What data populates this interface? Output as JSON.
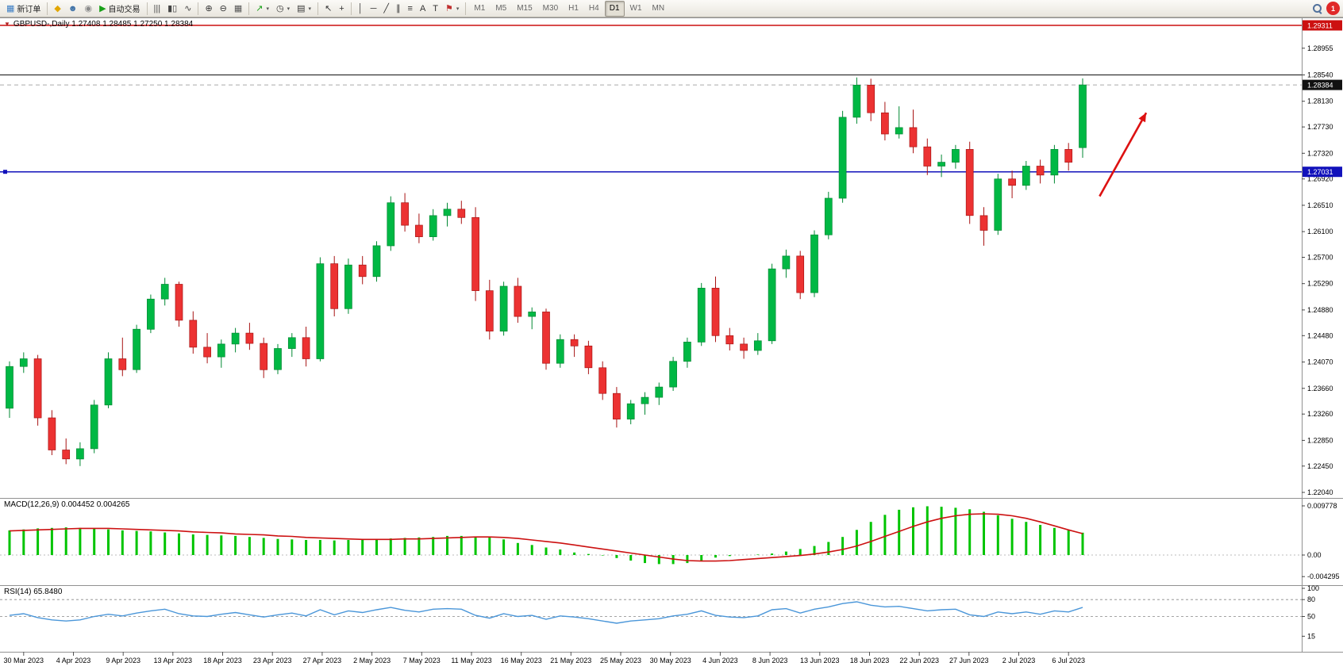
{
  "toolbar": {
    "active_timeframe": "D1",
    "items": [
      {
        "type": "button",
        "name": "new-order-button",
        "icon": "new-order-icon",
        "glyph": "▦",
        "color": "#3b7dc4",
        "label": "新订单"
      },
      {
        "type": "sep"
      },
      {
        "type": "button",
        "name": "metaeditor-button",
        "icon": "metaeditor-icon",
        "glyph": "◆",
        "color": "#e2a600"
      },
      {
        "type": "button",
        "name": "community-button",
        "icon": "community-icon",
        "glyph": "☻",
        "color": "#3a6ea5"
      },
      {
        "type": "button",
        "name": "market-button",
        "icon": "market-icon",
        "glyph": "◉",
        "color": "#8a8a8a"
      },
      {
        "type": "button",
        "name": "autotrading-button",
        "icon": "autotrading-play-icon",
        "glyph": "▶",
        "color": "#18a018",
        "label": "自动交易"
      },
      {
        "type": "sep"
      },
      {
        "type": "button",
        "name": "bar-chart-button",
        "icon": "bar-chart-icon",
        "glyph": "|||",
        "color": "#444444"
      },
      {
        "type": "button",
        "name": "candlestick-chart-button",
        "icon": "candlestick-chart-icon",
        "glyph": "▮▯",
        "color": "#444444"
      },
      {
        "type": "button",
        "name": "line-chart-button",
        "icon": "line-chart-icon",
        "glyph": "∿",
        "color": "#444444"
      },
      {
        "type": "sep"
      },
      {
        "type": "button",
        "name": "zoom-in-button",
        "icon": "zoom-in-icon",
        "glyph": "⊕",
        "color": "#333333"
      },
      {
        "type": "button",
        "name": "zoom-out-button",
        "icon": "zoom-out-icon",
        "glyph": "⊖",
        "color": "#333333"
      },
      {
        "type": "button",
        "name": "tile-windows-button",
        "icon": "tile-windows-icon",
        "glyph": "▦",
        "color": "#555555"
      },
      {
        "type": "sep"
      },
      {
        "type": "button",
        "name": "indicators-button",
        "icon": "indicators-icon",
        "glyph": "↗",
        "color": "#18a018",
        "caret": true
      },
      {
        "type": "button",
        "name": "periods-button",
        "icon": "clock-icon",
        "glyph": "◷",
        "color": "#333333",
        "caret": true
      },
      {
        "type": "button",
        "name": "templates-button",
        "icon": "template-icon",
        "glyph": "▤",
        "color": "#333333",
        "caret": true
      },
      {
        "type": "sep"
      },
      {
        "type": "button",
        "name": "cursor-button",
        "icon": "cursor-icon",
        "glyph": "↖",
        "color": "#333333"
      },
      {
        "type": "button",
        "name": "crosshair-button",
        "icon": "crosshair-icon",
        "glyph": "+",
        "color": "#333333"
      },
      {
        "type": "sep"
      },
      {
        "type": "button",
        "name": "vertical-line-button",
        "icon": "vertical-line-icon",
        "glyph": "│",
        "color": "#333333"
      },
      {
        "type": "button",
        "name": "horizontal-line-button",
        "icon": "horizontal-line-icon",
        "glyph": "─",
        "color": "#333333"
      },
      {
        "type": "button",
        "name": "trendline-button",
        "icon": "trendline-icon",
        "glyph": "╱",
        "color": "#333333"
      },
      {
        "type": "button",
        "name": "channel-button",
        "icon": "channel-icon",
        "glyph": "∥",
        "color": "#333333"
      },
      {
        "type": "button",
        "name": "fibonacci-button",
        "icon": "fibonacci-icon",
        "glyph": "≡",
        "color": "#333333"
      },
      {
        "type": "button",
        "name": "text-button",
        "icon": "text-icon",
        "glyph": "A",
        "color": "#333333"
      },
      {
        "type": "button",
        "name": "text-label-button",
        "icon": "text-label-icon",
        "glyph": "T",
        "color": "#333333"
      },
      {
        "type": "button",
        "name": "arrows-button",
        "icon": "arrow-tool-icon",
        "glyph": "⚑",
        "color": "#c03030",
        "caret": true
      },
      {
        "type": "sep"
      },
      {
        "type": "tf",
        "label": "M1"
      },
      {
        "type": "tf",
        "label": "M5"
      },
      {
        "type": "tf",
        "label": "M15"
      },
      {
        "type": "tf",
        "label": "M30"
      },
      {
        "type": "tf",
        "label": "H1"
      },
      {
        "type": "tf",
        "label": "H4"
      },
      {
        "type": "tf",
        "label": "D1"
      },
      {
        "type": "tf",
        "label": "W1"
      },
      {
        "type": "tf",
        "label": "MN"
      },
      {
        "type": "spacer"
      },
      {
        "type": "button",
        "name": "search-button",
        "css": "search"
      },
      {
        "type": "button",
        "name": "notifications-button",
        "css": "badge",
        "text": "1"
      }
    ]
  },
  "chart_data": [
    {
      "type": "candlestick",
      "symbol": "GBPUSD-",
      "timeframe": "Daily",
      "title": "GBPUSD-,Daily 1.27408 1.28485 1.27250 1.28384",
      "marker": "▼",
      "ohlc_current": {
        "open": "1.27408",
        "high": "1.28485",
        "low": "1.27250",
        "close": "1.28384"
      },
      "ylim": [
        1.2204,
        1.29311
      ],
      "up_color": "#00b844",
      "up_border": "#028833",
      "down_color": "#ec3232",
      "down_border": "#a81414",
      "y_ticks": [
        "1.28955",
        "1.28540",
        "1.28130",
        "1.27730",
        "1.27320",
        "1.26920",
        "1.26510",
        "1.26100",
        "1.25700",
        "1.25290",
        "1.24880",
        "1.24480",
        "1.24070",
        "1.23660",
        "1.23260",
        "1.22850",
        "1.22450",
        "1.22040"
      ],
      "axis_badges": [
        {
          "label": "1.29311",
          "bg": "#cc1111"
        },
        {
          "label": "1.28384",
          "bg": "#111111"
        },
        {
          "label": "1.27031",
          "bg": "#1212bb"
        }
      ],
      "levels": [
        {
          "name": "upper-red-line",
          "value": 1.29311,
          "color": "#cc1111",
          "style": "solid",
          "width": 1.4
        },
        {
          "name": "resistance-line",
          "value": 1.2854,
          "color": "#111111",
          "style": "solid",
          "width": 1.1
        },
        {
          "name": "bid-line",
          "value": 1.28384,
          "color": "#aaaaaa",
          "style": "dashed",
          "width": 1
        },
        {
          "name": "support-line",
          "value": 1.27031,
          "color": "#1212bb",
          "style": "solid",
          "width": 1.5
        }
      ],
      "arrow": {
        "from_bar": 77.2,
        "from_price": 1.2665,
        "to_bar": 80.5,
        "to_price": 1.2795,
        "color": "#dd1111"
      },
      "x_ticks": [
        "30 Mar 2023",
        "4 Apr 2023",
        "9 Apr 2023",
        "13 Apr 2023",
        "18 Apr 2023",
        "23 Apr 2023",
        "27 Apr 2023",
        "2 May 2023",
        "7 May 2023",
        "11 May 2023",
        "16 May 2023",
        "21 May 2023",
        "25 May 2023",
        "30 May 2023",
        "4 Jun 2023",
        "8 Jun 2023",
        "13 Jun 2023",
        "18 Jun 2023",
        "22 Jun 2023",
        "27 Jun 2023",
        "2 Jul 2023",
        "6 Jul 2023"
      ],
      "candles": [
        [
          1.2335,
          1.2408,
          1.232,
          1.24
        ],
        [
          1.24,
          1.2422,
          1.239,
          1.2412
        ],
        [
          1.2412,
          1.2418,
          1.2308,
          1.232
        ],
        [
          1.232,
          1.2332,
          1.2262,
          1.227
        ],
        [
          1.227,
          1.2288,
          1.2248,
          1.2256
        ],
        [
          1.2256,
          1.2282,
          1.2245,
          1.2272
        ],
        [
          1.2272,
          1.2348,
          1.2265,
          1.234
        ],
        [
          1.234,
          1.2422,
          1.2335,
          1.2412
        ],
        [
          1.2412,
          1.2445,
          1.2385,
          1.2395
        ],
        [
          1.2395,
          1.2465,
          1.239,
          1.2458
        ],
        [
          1.2458,
          1.2512,
          1.2452,
          1.2505
        ],
        [
          1.2505,
          1.2538,
          1.2495,
          1.2528
        ],
        [
          1.2528,
          1.2532,
          1.2462,
          1.2472
        ],
        [
          1.2472,
          1.2486,
          1.242,
          1.243
        ],
        [
          1.243,
          1.2452,
          1.2405,
          1.2415
        ],
        [
          1.2415,
          1.2442,
          1.2398,
          1.2435
        ],
        [
          1.2435,
          1.246,
          1.2422,
          1.2452
        ],
        [
          1.2452,
          1.2468,
          1.2426,
          1.2436
        ],
        [
          1.2436,
          1.2445,
          1.2382,
          1.2395
        ],
        [
          1.2395,
          1.2435,
          1.2388,
          1.2428
        ],
        [
          1.2428,
          1.2452,
          1.2415,
          1.2445
        ],
        [
          1.2445,
          1.2462,
          1.24,
          1.2412
        ],
        [
          1.2412,
          1.257,
          1.2408,
          1.256
        ],
        [
          1.256,
          1.2572,
          1.2478,
          1.249
        ],
        [
          1.249,
          1.2568,
          1.2482,
          1.2558
        ],
        [
          1.2558,
          1.2572,
          1.2528,
          1.254
        ],
        [
          1.254,
          1.2595,
          1.2532,
          1.2588
        ],
        [
          1.2588,
          1.2665,
          1.258,
          1.2655
        ],
        [
          1.2655,
          1.267,
          1.261,
          1.262
        ],
        [
          1.262,
          1.2638,
          1.2592,
          1.2602
        ],
        [
          1.2602,
          1.2645,
          1.2596,
          1.2635
        ],
        [
          1.2635,
          1.2655,
          1.2618,
          1.2645
        ],
        [
          1.2645,
          1.2658,
          1.2622,
          1.2632
        ],
        [
          1.2632,
          1.2648,
          1.2502,
          1.2518
        ],
        [
          1.2518,
          1.2535,
          1.2442,
          1.2455
        ],
        [
          1.2455,
          1.2532,
          1.2448,
          1.2525
        ],
        [
          1.2525,
          1.2538,
          1.2468,
          1.2478
        ],
        [
          1.2478,
          1.2492,
          1.2458,
          1.2485
        ],
        [
          1.2485,
          1.249,
          1.2395,
          1.2405
        ],
        [
          1.2405,
          1.245,
          1.2398,
          1.2442
        ],
        [
          1.2442,
          1.245,
          1.2415,
          1.2432
        ],
        [
          1.2432,
          1.244,
          1.2388,
          1.2398
        ],
        [
          1.2398,
          1.2408,
          1.2348,
          1.2358
        ],
        [
          1.2358,
          1.2368,
          1.2305,
          1.2318
        ],
        [
          1.2318,
          1.2348,
          1.231,
          1.2342
        ],
        [
          1.2342,
          1.236,
          1.2325,
          1.2352
        ],
        [
          1.2352,
          1.2375,
          1.234,
          1.2368
        ],
        [
          1.2368,
          1.2415,
          1.2362,
          1.2408
        ],
        [
          1.2408,
          1.2445,
          1.2398,
          1.2438
        ],
        [
          1.2438,
          1.253,
          1.2432,
          1.2522
        ],
        [
          1.2522,
          1.254,
          1.2438,
          1.2448
        ],
        [
          1.2448,
          1.246,
          1.2425,
          1.2435
        ],
        [
          1.2435,
          1.2445,
          1.2412,
          1.2425
        ],
        [
          1.2425,
          1.2452,
          1.2418,
          1.244
        ],
        [
          1.244,
          1.256,
          1.2435,
          1.2552
        ],
        [
          1.2552,
          1.2582,
          1.2538,
          1.2572
        ],
        [
          1.2572,
          1.258,
          1.2505,
          1.2515
        ],
        [
          1.2515,
          1.2612,
          1.2508,
          1.2605
        ],
        [
          1.2605,
          1.2672,
          1.2598,
          1.2662
        ],
        [
          1.2662,
          1.2798,
          1.2655,
          1.2788
        ],
        [
          1.2788,
          1.285,
          1.2778,
          1.2838
        ],
        [
          1.2838,
          1.2848,
          1.2782,
          1.2795
        ],
        [
          1.2795,
          1.2812,
          1.2752,
          1.2762
        ],
        [
          1.2762,
          1.2805,
          1.2755,
          1.2772
        ],
        [
          1.2772,
          1.28,
          1.2732,
          1.2742
        ],
        [
          1.2742,
          1.2755,
          1.2698,
          1.2712
        ],
        [
          1.2712,
          1.273,
          1.2695,
          1.2718
        ],
        [
          1.2718,
          1.2745,
          1.2708,
          1.2738
        ],
        [
          1.2738,
          1.275,
          1.2622,
          1.2635
        ],
        [
          1.2635,
          1.2648,
          1.2588,
          1.2612
        ],
        [
          1.2612,
          1.27,
          1.2605,
          1.2692
        ],
        [
          1.2692,
          1.2705,
          1.2662,
          1.2682
        ],
        [
          1.2682,
          1.272,
          1.2675,
          1.2712
        ],
        [
          1.2712,
          1.2722,
          1.2685,
          1.2698
        ],
        [
          1.2698,
          1.2745,
          1.2685,
          1.2738
        ],
        [
          1.2738,
          1.2748,
          1.2705,
          1.2718
        ],
        [
          1.27408,
          1.28485,
          1.2725,
          1.28384
        ]
      ]
    },
    {
      "type": "bar",
      "name": "MACD",
      "label": "MACD(12,26,9) 0.004452 0.004265",
      "value_main": "0.004452",
      "value_signal": "0.004265",
      "bar_color": "#00c400",
      "signal_color": "#cc1111",
      "y_ticks": [
        "0.009778",
        "0.00",
        "-0.004295"
      ],
      "values": [
        0.0049,
        0.0051,
        0.0053,
        0.0054,
        0.0055,
        0.0054,
        0.0053,
        0.0051,
        0.0049,
        0.0048,
        0.0047,
        0.0045,
        0.0043,
        0.0041,
        0.004,
        0.0039,
        0.0038,
        0.0036,
        0.0034,
        0.0032,
        0.0031,
        0.003,
        0.003,
        0.0029,
        0.003,
        0.003,
        0.0032,
        0.0033,
        0.0034,
        0.0035,
        0.0036,
        0.0038,
        0.0038,
        0.0037,
        0.0036,
        0.0031,
        0.0024,
        0.002,
        0.0015,
        0.0011,
        0.0005,
        0.0002,
        -0.0001,
        -0.0006,
        -0.0011,
        -0.0016,
        -0.0018,
        -0.0018,
        -0.0016,
        -0.0012,
        -0.0005,
        -0.0002,
        0.0,
        0.0001,
        0.0003,
        0.0007,
        0.0012,
        0.0018,
        0.0026,
        0.0036,
        0.005,
        0.0066,
        0.008,
        0.009,
        0.0095,
        0.0097,
        0.0096,
        0.0094,
        0.0091,
        0.0086,
        0.0079,
        0.0072,
        0.0066,
        0.006,
        0.0054,
        0.0049,
        0.004452
      ],
      "signal": [
        0.0048,
        0.0049,
        0.005,
        0.0051,
        0.0052,
        0.0053,
        0.0053,
        0.0053,
        0.0052,
        0.0051,
        0.005,
        0.0049,
        0.0048,
        0.0046,
        0.0045,
        0.0044,
        0.0042,
        0.0041,
        0.004,
        0.0038,
        0.0037,
        0.0035,
        0.0034,
        0.0033,
        0.0032,
        0.0031,
        0.0031,
        0.0031,
        0.0032,
        0.0032,
        0.0033,
        0.0034,
        0.0035,
        0.0036,
        0.0036,
        0.0035,
        0.0033,
        0.003,
        0.0027,
        0.0024,
        0.002,
        0.0016,
        0.0012,
        0.0008,
        0.0004,
        0.0,
        -0.0004,
        -0.0008,
        -0.0011,
        -0.0012,
        -0.0012,
        -0.0011,
        -0.0009,
        -0.0007,
        -0.0005,
        -0.0003,
        -0.0001,
        0.0002,
        0.0006,
        0.0011,
        0.0018,
        0.0027,
        0.0037,
        0.0047,
        0.0057,
        0.0066,
        0.0073,
        0.0078,
        0.0081,
        0.0082,
        0.0081,
        0.0078,
        0.0073,
        0.0066,
        0.0058,
        0.005,
        0.004265
      ]
    },
    {
      "type": "line",
      "name": "RSI",
      "label": "RSI(14) 65.8480",
      "value": "65.8480",
      "line_color": "#4a96d9",
      "y_ticks": [
        "100",
        "80",
        "50",
        "15"
      ],
      "levels": [
        80,
        50
      ],
      "values": [
        52,
        55,
        48,
        44,
        42,
        44,
        50,
        54,
        51,
        56,
        60,
        63,
        55,
        51,
        50,
        54,
        57,
        53,
        49,
        53,
        56,
        51,
        62,
        53,
        60,
        57,
        62,
        66,
        61,
        58,
        63,
        64,
        63,
        52,
        47,
        55,
        50,
        52,
        45,
        51,
        49,
        46,
        42,
        38,
        42,
        44,
        46,
        51,
        54,
        60,
        52,
        49,
        48,
        51,
        62,
        64,
        56,
        63,
        67,
        73,
        76,
        70,
        67,
        68,
        64,
        60,
        62,
        63,
        53,
        50,
        58,
        55,
        58,
        54,
        60,
        58,
        66
      ]
    }
  ]
}
